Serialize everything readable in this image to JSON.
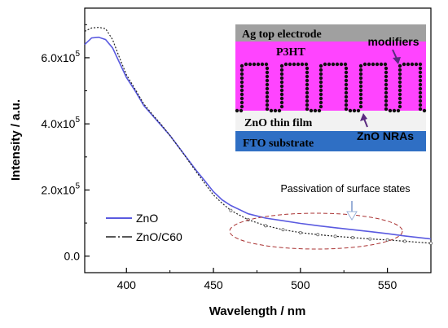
{
  "chart_data": {
    "type": "line",
    "xlabel": "Wavelength / nm",
    "ylabel": "Intensity / a.u.",
    "xlim": [
      376,
      575
    ],
    "ylim": [
      -50000,
      750000
    ],
    "x_ticks": [
      400,
      450,
      500,
      550
    ],
    "x_tick_labels": [
      "400",
      "450",
      "500",
      "550"
    ],
    "y_ticks": [
      0,
      200000,
      400000,
      600000
    ],
    "y_tick_labels": [
      {
        "base": "0.0",
        "exp": ""
      },
      {
        "base": "2.0x10",
        "exp": "5"
      },
      {
        "base": "4.0x10",
        "exp": "5"
      },
      {
        "base": "6.0x10",
        "exp": "5"
      }
    ],
    "legend_position": "lower-left",
    "series": [
      {
        "name": "ZnO",
        "color": "#5a5ae0",
        "x": [
          376,
          380,
          384,
          388,
          392,
          396,
          400,
          405,
          410,
          415,
          420,
          425,
          430,
          435,
          440,
          445,
          450,
          455,
          460,
          470,
          480,
          490,
          500,
          510,
          520,
          530,
          540,
          550,
          560,
          575
        ],
        "y": [
          640000,
          660000,
          662000,
          655000,
          630000,
          585000,
          540000,
          500000,
          455000,
          425000,
          395000,
          365000,
          330000,
          295000,
          260000,
          228000,
          195000,
          170000,
          153000,
          128000,
          115000,
          107000,
          99000,
          92000,
          86000,
          80000,
          74000,
          68000,
          61000,
          52000
        ]
      },
      {
        "name": "ZnO/C60",
        "color": "#222222",
        "x": [
          376,
          380,
          384,
          388,
          392,
          396,
          400,
          405,
          410,
          415,
          420,
          425,
          430,
          435,
          440,
          445,
          450,
          455,
          460,
          470,
          480,
          490,
          500,
          510,
          520,
          530,
          540,
          550,
          560,
          575
        ],
        "y": [
          680000,
          690000,
          692000,
          688000,
          655000,
          600000,
          548000,
          505000,
          460000,
          428000,
          398000,
          365000,
          330000,
          293000,
          256000,
          220000,
          185000,
          160000,
          138000,
          110000,
          92000,
          80000,
          71000,
          65000,
          60000,
          56000,
          52000,
          49000,
          45000,
          39000
        ]
      }
    ]
  },
  "inset": {
    "top_electrode": "Ag top electrode",
    "polymer": "P3HT",
    "modifiers": "modifiers",
    "thin_film": "ZnO thin film",
    "nanorods": "ZnO NRAs",
    "substrate": "FTO substrate",
    "colors": {
      "electrode": "#a0a0a0",
      "polymer": "#ff44ff",
      "thin_film": "#f2f2f2",
      "substrate": "#2f6fc4",
      "label_yellow": "#f5c518",
      "arrow": "#5a2a80"
    }
  },
  "annotation": {
    "text": "Passivation of surface states",
    "color": "#d9362b"
  }
}
